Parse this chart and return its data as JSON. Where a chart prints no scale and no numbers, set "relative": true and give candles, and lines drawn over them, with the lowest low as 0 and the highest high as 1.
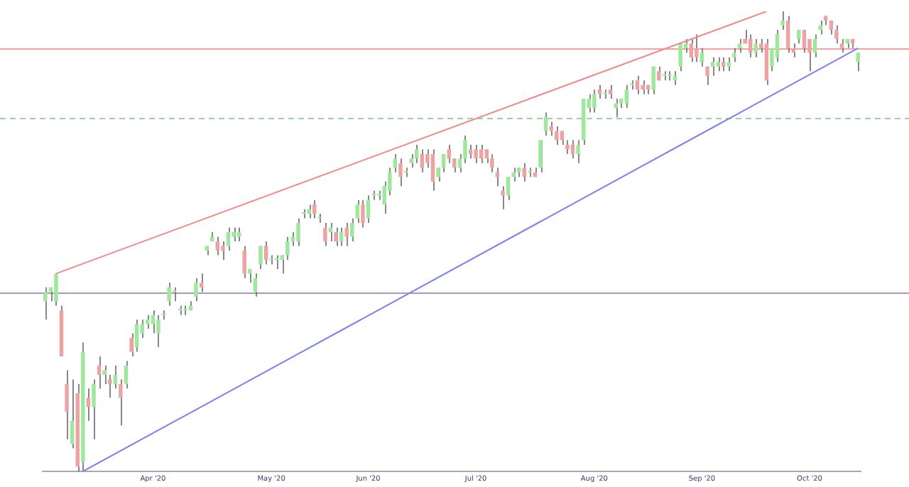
{
  "chart_data": {
    "type": "candlestick",
    "relative": true,
    "tick_labels": "x",
    "legend": false,
    "categories": [
      null,
      null,
      null,
      null,
      null,
      null,
      null,
      null,
      null,
      null,
      null,
      null,
      null,
      null,
      null,
      null,
      null,
      null,
      null,
      null,
      "Apr '20",
      null,
      null,
      null,
      null,
      null,
      null,
      null,
      null,
      null,
      null,
      null,
      null,
      null,
      null,
      null,
      null,
      null,
      null,
      null,
      null,
      null,
      "May '20",
      null,
      null,
      null,
      null,
      null,
      null,
      null,
      null,
      null,
      null,
      null,
      null,
      null,
      null,
      null,
      null,
      null,
      "Jun '20",
      null,
      null,
      null,
      null,
      null,
      null,
      null,
      null,
      null,
      null,
      null,
      null,
      null,
      null,
      null,
      null,
      null,
      null,
      null,
      "Jul '20",
      null,
      null,
      null,
      null,
      null,
      null,
      null,
      null,
      null,
      null,
      null,
      null,
      null,
      null,
      null,
      null,
      null,
      null,
      null,
      null,
      null,
      "Aug '20",
      null,
      null,
      null,
      null,
      null,
      null,
      null,
      null,
      null,
      null,
      null,
      null,
      null,
      null,
      null,
      null,
      null,
      null,
      null,
      "Sep '20",
      null,
      null,
      null,
      null,
      null,
      null,
      null,
      null,
      null,
      null,
      null,
      null,
      null,
      null,
      null,
      null,
      null,
      null,
      null,
      "Oct '20",
      null,
      null,
      null,
      null,
      null,
      null,
      null,
      null,
      null
    ],
    "ohlc": [
      [
        0.37,
        0.4,
        0.33,
        0.39
      ],
      [
        0.39,
        0.4,
        0.37,
        0.4
      ],
      [
        0.37,
        0.43,
        0.36,
        0.43
      ],
      [
        0.35,
        0.36,
        0.25,
        0.25
      ],
      [
        0.19,
        0.22,
        0.07,
        0.13
      ],
      [
        0.06,
        0.2,
        0.05,
        0.11
      ],
      [
        0.17,
        0.19,
        0.0,
        0.01
      ],
      [
        0.02,
        0.28,
        0.0,
        0.26
      ],
      [
        0.16,
        0.18,
        0.11,
        0.14
      ],
      [
        0.14,
        0.2,
        0.07,
        0.19
      ],
      [
        0.23,
        0.25,
        0.18,
        0.21
      ],
      [
        0.21,
        0.23,
        0.19,
        0.22
      ],
      [
        0.2,
        0.21,
        0.16,
        0.19
      ],
      [
        0.19,
        0.23,
        0.18,
        0.21
      ],
      [
        0.19,
        0.2,
        0.1,
        0.16
      ],
      [
        0.19,
        0.24,
        0.18,
        0.23
      ],
      [
        0.29,
        0.3,
        0.25,
        0.26
      ],
      [
        0.27,
        0.33,
        0.26,
        0.32
      ],
      [
        0.3,
        0.33,
        0.29,
        0.32
      ],
      [
        0.32,
        0.34,
        0.31,
        0.33
      ],
      [
        0.32,
        0.35,
        0.3,
        0.34
      ],
      [
        0.3,
        0.34,
        0.27,
        0.33
      ],
      [
        0.34,
        0.35,
        0.33,
        0.34
      ],
      [
        0.37,
        0.41,
        0.36,
        0.4
      ],
      [
        0.39,
        0.4,
        0.37,
        0.39
      ],
      [
        0.35,
        0.36,
        0.34,
        0.35
      ],
      [
        0.35,
        0.36,
        0.34,
        0.35
      ],
      [
        0.35,
        0.37,
        0.35,
        0.36
      ],
      [
        0.38,
        0.42,
        0.37,
        0.41
      ],
      [
        0.41,
        0.43,
        0.39,
        0.4
      ],
      [
        0.48,
        0.49,
        0.47,
        0.49
      ],
      [
        0.5,
        0.52,
        0.5,
        0.51
      ],
      [
        0.5,
        0.51,
        0.47,
        0.48
      ],
      [
        0.49,
        0.5,
        0.46,
        0.48
      ],
      [
        0.49,
        0.53,
        0.48,
        0.52
      ],
      [
        0.51,
        0.53,
        0.5,
        0.52
      ],
      [
        0.51,
        0.53,
        0.5,
        0.52
      ],
      [
        0.48,
        0.49,
        0.42,
        0.43
      ],
      [
        0.43,
        0.44,
        0.41,
        0.44
      ],
      [
        0.39,
        0.43,
        0.38,
        0.42
      ],
      [
        0.45,
        0.49,
        0.44,
        0.49
      ],
      [
        0.49,
        0.5,
        0.45,
        0.46
      ],
      [
        0.46,
        0.47,
        0.45,
        0.46
      ],
      [
        0.46,
        0.47,
        0.44,
        0.46
      ],
      [
        0.46,
        0.47,
        0.43,
        0.47
      ],
      [
        0.47,
        0.51,
        0.46,
        0.5
      ],
      [
        0.5,
        0.52,
        0.49,
        0.51
      ],
      [
        0.5,
        0.55,
        0.49,
        0.54
      ],
      [
        0.56,
        0.57,
        0.55,
        0.56
      ],
      [
        0.56,
        0.58,
        0.55,
        0.57
      ],
      [
        0.58,
        0.59,
        0.55,
        0.56
      ],
      [
        0.55,
        0.56,
        0.54,
        0.55
      ],
      [
        0.53,
        0.54,
        0.49,
        0.5
      ],
      [
        0.52,
        0.54,
        0.5,
        0.53
      ],
      [
        0.52,
        0.53,
        0.49,
        0.5
      ],
      [
        0.5,
        0.53,
        0.49,
        0.52
      ],
      [
        0.53,
        0.54,
        0.49,
        0.51
      ],
      [
        0.51,
        0.55,
        0.5,
        0.54
      ],
      [
        0.55,
        0.59,
        0.54,
        0.58
      ],
      [
        0.58,
        0.59,
        0.53,
        0.54
      ],
      [
        0.55,
        0.6,
        0.54,
        0.59
      ],
      [
        0.6,
        0.61,
        0.59,
        0.6
      ],
      [
        0.6,
        0.61,
        0.59,
        0.6
      ],
      [
        0.58,
        0.63,
        0.56,
        0.62
      ],
      [
        0.61,
        0.66,
        0.6,
        0.65
      ],
      [
        0.66,
        0.69,
        0.65,
        0.68
      ],
      [
        0.67,
        0.68,
        0.62,
        0.64
      ],
      [
        0.65,
        0.66,
        0.64,
        0.65
      ],
      [
        0.67,
        0.69,
        0.66,
        0.68
      ],
      [
        0.68,
        0.71,
        0.67,
        0.7
      ],
      [
        0.69,
        0.7,
        0.65,
        0.66
      ],
      [
        0.69,
        0.7,
        0.66,
        0.67
      ],
      [
        0.69,
        0.7,
        0.61,
        0.63
      ],
      [
        0.64,
        0.66,
        0.63,
        0.66
      ],
      [
        0.66,
        0.69,
        0.65,
        0.69
      ],
      [
        0.7,
        0.71,
        0.67,
        0.68
      ],
      [
        0.68,
        0.68,
        0.65,
        0.66
      ],
      [
        0.66,
        0.69,
        0.65,
        0.68
      ],
      [
        0.68,
        0.73,
        0.67,
        0.72
      ],
      [
        0.7,
        0.71,
        0.68,
        0.69
      ],
      [
        0.7,
        0.71,
        0.67,
        0.68
      ],
      [
        0.7,
        0.71,
        0.67,
        0.68
      ],
      [
        0.7,
        0.7,
        0.67,
        0.68
      ],
      [
        0.68,
        0.69,
        0.65,
        0.66
      ],
      [
        0.65,
        0.66,
        0.62,
        0.64
      ],
      [
        0.61,
        0.62,
        0.57,
        0.6
      ],
      [
        0.6,
        0.64,
        0.59,
        0.64
      ],
      [
        0.64,
        0.66,
        0.63,
        0.65
      ],
      [
        0.65,
        0.66,
        0.64,
        0.66
      ],
      [
        0.66,
        0.67,
        0.63,
        0.64
      ],
      [
        0.65,
        0.66,
        0.64,
        0.65
      ],
      [
        0.65,
        0.66,
        0.64,
        0.64
      ],
      [
        0.66,
        0.72,
        0.65,
        0.72
      ],
      [
        0.74,
        0.78,
        0.73,
        0.77
      ],
      [
        0.75,
        0.76,
        0.73,
        0.74
      ],
      [
        0.74,
        0.75,
        0.71,
        0.72
      ],
      [
        0.74,
        0.74,
        0.71,
        0.72
      ],
      [
        0.71,
        0.72,
        0.69,
        0.7
      ],
      [
        0.71,
        0.72,
        0.68,
        0.69
      ],
      [
        0.69,
        0.72,
        0.67,
        0.71
      ],
      [
        0.72,
        0.81,
        0.71,
        0.81
      ],
      [
        0.79,
        0.82,
        0.78,
        0.81
      ],
      [
        0.79,
        0.83,
        0.78,
        0.82
      ],
      [
        0.83,
        0.84,
        0.81,
        0.82
      ],
      [
        0.82,
        0.83,
        0.81,
        0.82
      ],
      [
        0.83,
        0.84,
        0.81,
        0.82
      ],
      [
        0.79,
        0.81,
        0.77,
        0.8
      ],
      [
        0.8,
        0.81,
        0.79,
        0.81
      ],
      [
        0.8,
        0.84,
        0.79,
        0.83
      ],
      [
        0.84,
        0.85,
        0.83,
        0.84
      ],
      [
        0.85,
        0.86,
        0.82,
        0.83
      ],
      [
        0.84,
        0.85,
        0.82,
        0.83
      ],
      [
        0.84,
        0.84,
        0.82,
        0.83
      ],
      [
        0.83,
        0.88,
        0.82,
        0.88
      ],
      [
        0.87,
        0.88,
        0.85,
        0.85
      ],
      [
        0.86,
        0.87,
        0.85,
        0.86
      ],
      [
        0.86,
        0.87,
        0.85,
        0.86
      ],
      [
        0.85,
        0.87,
        0.84,
        0.86
      ],
      [
        0.88,
        0.93,
        0.87,
        0.93
      ],
      [
        0.92,
        0.94,
        0.91,
        0.93
      ],
      [
        0.93,
        0.94,
        0.89,
        0.9
      ],
      [
        0.92,
        0.95,
        0.89,
        0.9
      ],
      [
        0.89,
        0.92,
        0.88,
        0.91
      ],
      [
        0.88,
        0.88,
        0.84,
        0.86
      ],
      [
        0.88,
        0.9,
        0.86,
        0.89
      ],
      [
        0.88,
        0.9,
        0.87,
        0.89
      ],
      [
        0.89,
        0.9,
        0.87,
        0.88
      ],
      [
        0.88,
        0.9,
        0.87,
        0.89
      ],
      [
        0.9,
        0.92,
        0.89,
        0.91
      ],
      [
        0.92,
        0.94,
        0.91,
        0.93
      ],
      [
        0.94,
        0.96,
        0.93,
        0.93
      ],
      [
        0.94,
        0.95,
        0.9,
        0.91
      ],
      [
        0.91,
        0.94,
        0.9,
        0.93
      ],
      [
        0.93,
        0.94,
        0.91,
        0.92
      ],
      [
        0.93,
        0.94,
        0.84,
        0.85
      ],
      [
        0.88,
        0.92,
        0.87,
        0.92
      ],
      [
        0.9,
        0.96,
        0.89,
        0.95
      ],
      [
        0.97,
        1.0,
        0.96,
        0.98
      ],
      [
        0.98,
        0.99,
        0.91,
        0.92
      ],
      [
        0.92,
        0.93,
        0.9,
        0.91
      ],
      [
        0.94,
        0.96,
        0.93,
        0.96
      ],
      [
        0.96,
        0.96,
        0.91,
        0.92
      ],
      [
        0.94,
        0.94,
        0.87,
        0.91
      ],
      [
        0.91,
        0.95,
        0.9,
        0.94
      ],
      [
        0.96,
        0.98,
        0.95,
        0.97
      ],
      [
        0.99,
        0.99,
        0.97,
        0.98
      ],
      [
        0.98,
        0.98,
        0.95,
        0.96
      ],
      [
        0.96,
        0.97,
        0.93,
        0.94
      ],
      [
        0.93,
        0.94,
        0.91,
        0.92
      ],
      [
        0.93,
        0.94,
        0.92,
        0.94
      ],
      [
        0.94,
        0.94,
        0.92,
        0.93
      ],
      [
        0.89,
        0.91,
        0.87,
        0.91
      ]
    ],
    "colors": [
      "#9de89d",
      "#9de89d",
      "#9de89d",
      "#eda3a3",
      "#eda3a3",
      "#9de89d",
      "#eda3a3",
      "#9de89d",
      "#eda3a3",
      "#9de89d",
      "#eda3a3",
      "#9de89d",
      "#eda3a3",
      "#9de89d",
      "#eda3a3",
      "#9de89d",
      "#eda3a3",
      "#9de89d",
      "#9de89d",
      "#9de89d",
      "#9de89d",
      "#9de89d",
      "#9de89d",
      "#9de89d",
      "#9de89d",
      "#9de89d",
      "#9de89d",
      "#9de89d",
      "#9de89d",
      "#eda3a3",
      "#9de89d",
      "#9de89d",
      "#eda3a3",
      "#eda3a3",
      "#9de89d",
      "#9de89d",
      "#9de89d",
      "#eda3a3",
      "#9de89d",
      "#9de89d",
      "#9de89d",
      "#eda3a3",
      "#9de89d",
      "#9de89d",
      "#9de89d",
      "#9de89d",
      "#9de89d",
      "#9de89d",
      "#9de89d",
      "#9de89d",
      "#eda3a3",
      "#9de89d",
      "#eda3a3",
      "#9de89d",
      "#eda3a3",
      "#9de89d",
      "#eda3a3",
      "#9de89d",
      "#9de89d",
      "#eda3a3",
      "#9de89d",
      "#9de89d",
      "#9de89d",
      "#9de89d",
      "#9de89d",
      "#9de89d",
      "#eda3a3",
      "#9de89d",
      "#9de89d",
      "#9de89d",
      "#eda3a3",
      "#eda3a3",
      "#eda3a3",
      "#9de89d",
      "#9de89d",
      "#eda3a3",
      "#eda3a3",
      "#9de89d",
      "#9de89d",
      "#eda3a3",
      "#eda3a3",
      "#eda3a3",
      "#eda3a3",
      "#eda3a3",
      "#eda3a3",
      "#eda3a3",
      "#9de89d",
      "#9de89d",
      "#9de89d",
      "#eda3a3",
      "#9de89d",
      "#eda3a3",
      "#9de89d",
      "#9de89d",
      "#eda3a3",
      "#eda3a3",
      "#eda3a3",
      "#eda3a3",
      "#eda3a3",
      "#9de89d",
      "#9de89d",
      "#9de89d",
      "#9de89d",
      "#eda3a3",
      "#9de89d",
      "#eda3a3",
      "#9de89d",
      "#9de89d",
      "#9de89d",
      "#9de89d",
      "#eda3a3",
      "#eda3a3",
      "#eda3a3",
      "#9de89d",
      "#eda3a3",
      "#9de89d",
      "#9de89d",
      "#9de89d",
      "#9de89d",
      "#9de89d",
      "#eda3a3",
      "#eda3a3",
      "#9de89d",
      "#eda3a3",
      "#9de89d",
      "#9de89d",
      "#eda3a3",
      "#9de89d",
      "#9de89d",
      "#9de89d",
      "#eda3a3",
      "#eda3a3",
      "#9de89d",
      "#eda3a3",
      "#eda3a3",
      "#9de89d",
      "#9de89d",
      "#9de89d",
      "#eda3a3",
      "#eda3a3",
      "#9de89d",
      "#eda3a3",
      "#eda3a3",
      "#9de89d",
      "#9de89d",
      "#eda3a3",
      "#eda3a3",
      "#eda3a3",
      "#eda3a3",
      "#9de89d",
      "#eda3a3",
      "#9de89d"
    ],
    "series": [
      {
        "type": "line",
        "color": "#f08a8a",
        "values": [
          null,
          null,
          0.43,
          null,
          null,
          null,
          null,
          null,
          null,
          null,
          null,
          null,
          null,
          null,
          null,
          null,
          null,
          null,
          null,
          null,
          null,
          null,
          null,
          null,
          null,
          null,
          null,
          null,
          null,
          null,
          null,
          null,
          null,
          null,
          null,
          null,
          null,
          null,
          null,
          null,
          null,
          null,
          null,
          null,
          null,
          null,
          null,
          null,
          null,
          null,
          null,
          null,
          null,
          null,
          null,
          null,
          null,
          null,
          null,
          null,
          null,
          null,
          null,
          null,
          null,
          null,
          null,
          null,
          null,
          null,
          null,
          null,
          null,
          null,
          null,
          null,
          null,
          null,
          null,
          null,
          null,
          null,
          null,
          null,
          null,
          null,
          null,
          null,
          null,
          null,
          null,
          null,
          null,
          null,
          null,
          null,
          null,
          null,
          null,
          null,
          null,
          null,
          null,
          null,
          null,
          null,
          null,
          null,
          null,
          null,
          null,
          null,
          null,
          null,
          null,
          null,
          null,
          null,
          null,
          null,
          null,
          null,
          null,
          null,
          null,
          null,
          null,
          null,
          null,
          null,
          null,
          null,
          null,
          null,
          1.0,
          null,
          null,
          null,
          null,
          null,
          null,
          null,
          null,
          null,
          null,
          null,
          null,
          null,
          null,
          null,
          null,
          null
        ]
      },
      {
        "type": "line",
        "color": "#7f7fef",
        "values": [
          null,
          null,
          null,
          null,
          null,
          null,
          null,
          0.0,
          null,
          null,
          null,
          null,
          null,
          null,
          null,
          null,
          null,
          null,
          null,
          null,
          null,
          null,
          null,
          null,
          null,
          null,
          null,
          null,
          null,
          null,
          null,
          null,
          null,
          null,
          null,
          null,
          null,
          null,
          null,
          null,
          null,
          null,
          null,
          null,
          null,
          null,
          null,
          null,
          null,
          null,
          null,
          null,
          null,
          null,
          null,
          null,
          null,
          null,
          null,
          null,
          null,
          null,
          null,
          null,
          null,
          null,
          null,
          null,
          null,
          null,
          null,
          null,
          null,
          null,
          null,
          null,
          null,
          null,
          null,
          null,
          null,
          null,
          null,
          null,
          null,
          null,
          null,
          null,
          null,
          null,
          null,
          null,
          null,
          null,
          null,
          null,
          null,
          null,
          null,
          null,
          null,
          null,
          null,
          null,
          null,
          null,
          null,
          null,
          null,
          null,
          null,
          null,
          null,
          null,
          null,
          null,
          null,
          null,
          null,
          null,
          null,
          null,
          null,
          null,
          null,
          null,
          null,
          null,
          null,
          null,
          null,
          null,
          null,
          null,
          null,
          null,
          null,
          null,
          null,
          null,
          null,
          null,
          null,
          null,
          null,
          null,
          null,
          null,
          null,
          null,
          null,
          0.92
        ]
      }
    ],
    "ref_lines": [
      {
        "axis": "y",
        "value": 0.92,
        "color": "#f4a3a3",
        "line_style": "solid"
      },
      {
        "axis": "y",
        "value": 0.77,
        "color": "#9fd09f",
        "line_style": "dashed"
      },
      {
        "axis": "y",
        "value": 0.39,
        "color": "#a99bb8",
        "line_style": "solid"
      }
    ]
  }
}
